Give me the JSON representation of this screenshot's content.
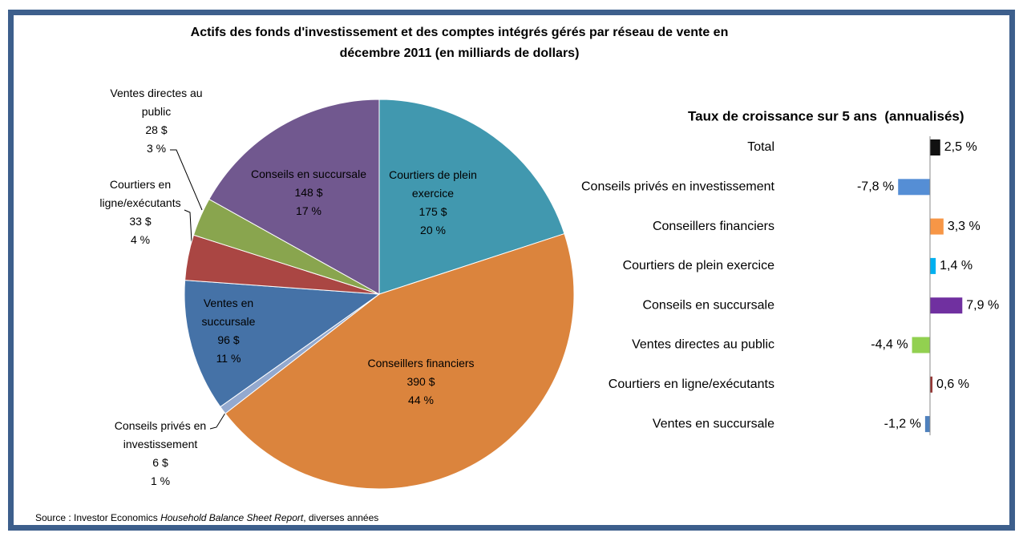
{
  "chart_data": [
    {
      "type": "pie",
      "title": "Actifs des fonds d'investissement et des comptes intégrés gérés par réseau de vente en décembre 2011 (en milliards de dollars)",
      "categories": [
        "Courtiers de plein exercice",
        "Conseillers financiers",
        "Conseils privés en investissement",
        "Ventes en succursale",
        "Courtiers en ligne/exécutants",
        "Ventes directes au public",
        "Conseils en succursale"
      ],
      "values": [
        175,
        390,
        6,
        96,
        33,
        28,
        148
      ],
      "value_labels": [
        "175 $",
        "390 $",
        "6 $",
        "96 $",
        "33 $",
        "28 $",
        "148 $"
      ],
      "shares": [
        20,
        44,
        1,
        11,
        4,
        3,
        17
      ],
      "share_labels": [
        "20 %",
        "44 %",
        "1 %",
        "11 %",
        "4 %",
        "3 %",
        "17 %"
      ],
      "colors": [
        "#4198af",
        "#db843d",
        "#93a9cf",
        "#4572a7",
        "#aa4643",
        "#89a54e",
        "#71588f"
      ]
    },
    {
      "type": "hbar",
      "title": "Taux de croissance sur 5 ans  (annualisés)",
      "categories": [
        "Total",
        "Conseils privés en investissement",
        "Conseillers financiers",
        "Courtiers de plein exercice",
        "Conseils en succursale",
        "Ventes directes au public",
        "Courtiers en ligne/exécutants",
        "Ventes en succursale"
      ],
      "values": [
        2.5,
        -7.8,
        3.3,
        1.4,
        7.9,
        -4.4,
        0.6,
        -1.2
      ],
      "value_labels": [
        "2,5 %",
        "-7,8 %",
        "3,3 %",
        "1,4 %",
        "7,9 %",
        "-4,4 %",
        "0,6 %",
        "-1,2 %"
      ],
      "colors": [
        "#111111",
        "#558ed5",
        "#f79646",
        "#00b0f0",
        "#7030a0",
        "#92d050",
        "#953735",
        "#4f81bd"
      ],
      "xlim": [
        -10,
        10
      ]
    }
  ],
  "source": {
    "prefix": "Source : Investor Economics ",
    "title": "Household Balance Sheet Report",
    "suffix": ", diverses années"
  }
}
